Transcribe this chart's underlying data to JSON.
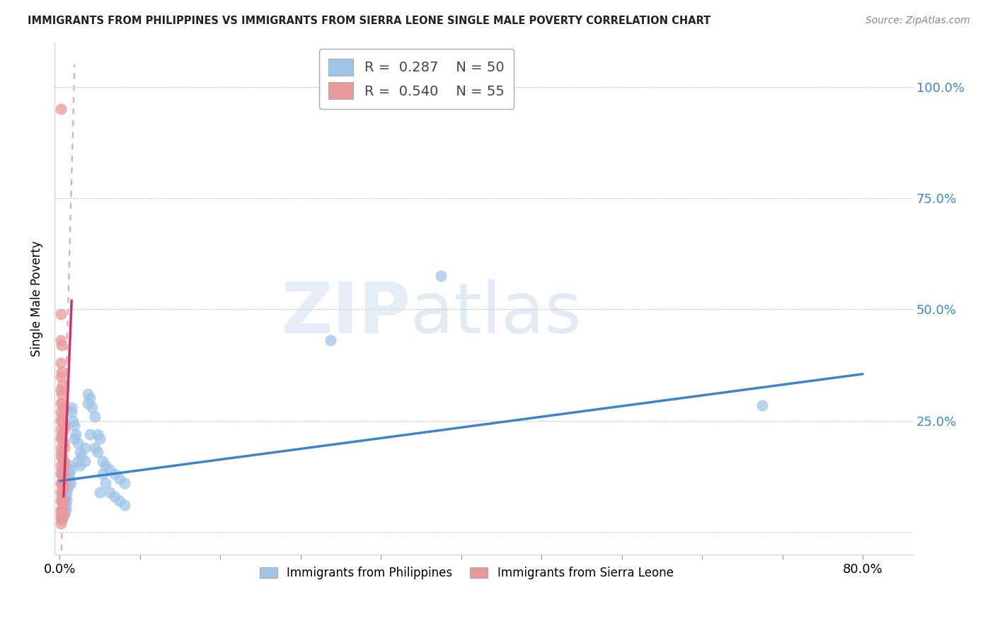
{
  "title": "IMMIGRANTS FROM PHILIPPINES VS IMMIGRANTS FROM SIERRA LEONE SINGLE MALE POVERTY CORRELATION CHART",
  "source": "Source: ZipAtlas.com",
  "ylabel": "Single Male Poverty",
  "yticks": [
    0.0,
    0.25,
    0.5,
    0.75,
    1.0
  ],
  "xlim": [
    -0.005,
    0.85
  ],
  "ylim": [
    -0.05,
    1.1
  ],
  "blue_color": "#9fc5e8",
  "pink_color": "#ea9999",
  "trend_blue": "#3d85c8",
  "trend_pink_solid": "#cc3366",
  "trend_pink_dash": "#e6a0b0",
  "watermark_zip": "ZIP",
  "watermark_atlas": "atlas",
  "philippines_points": [
    [
      0.002,
      0.13
    ],
    [
      0.003,
      0.12
    ],
    [
      0.003,
      0.09
    ],
    [
      0.003,
      0.07
    ],
    [
      0.004,
      0.14
    ],
    [
      0.004,
      0.11
    ],
    [
      0.004,
      0.08
    ],
    [
      0.004,
      0.06
    ],
    [
      0.005,
      0.16
    ],
    [
      0.005,
      0.13
    ],
    [
      0.005,
      0.1
    ],
    [
      0.005,
      0.07
    ],
    [
      0.005,
      0.05
    ],
    [
      0.005,
      0.04
    ],
    [
      0.006,
      0.14
    ],
    [
      0.006,
      0.12
    ],
    [
      0.006,
      0.1
    ],
    [
      0.006,
      0.08
    ],
    [
      0.006,
      0.06
    ],
    [
      0.006,
      0.05
    ],
    [
      0.007,
      0.13
    ],
    [
      0.007,
      0.11
    ],
    [
      0.007,
      0.09
    ],
    [
      0.007,
      0.07
    ],
    [
      0.008,
      0.14
    ],
    [
      0.008,
      0.12
    ],
    [
      0.008,
      0.1
    ],
    [
      0.009,
      0.13
    ],
    [
      0.009,
      0.11
    ],
    [
      0.01,
      0.15
    ],
    [
      0.01,
      0.12
    ],
    [
      0.011,
      0.14
    ],
    [
      0.011,
      0.11
    ],
    [
      0.012,
      0.28
    ],
    [
      0.012,
      0.27
    ],
    [
      0.013,
      0.25
    ],
    [
      0.015,
      0.24
    ],
    [
      0.015,
      0.21
    ],
    [
      0.016,
      0.22
    ],
    [
      0.018,
      0.2
    ],
    [
      0.018,
      0.16
    ],
    [
      0.02,
      0.18
    ],
    [
      0.02,
      0.15
    ],
    [
      0.022,
      0.17
    ],
    [
      0.025,
      0.19
    ],
    [
      0.025,
      0.16
    ],
    [
      0.028,
      0.31
    ],
    [
      0.028,
      0.29
    ],
    [
      0.03,
      0.3
    ],
    [
      0.03,
      0.22
    ],
    [
      0.032,
      0.28
    ],
    [
      0.035,
      0.26
    ],
    [
      0.035,
      0.19
    ],
    [
      0.038,
      0.22
    ],
    [
      0.038,
      0.18
    ],
    [
      0.04,
      0.21
    ],
    [
      0.04,
      0.09
    ],
    [
      0.043,
      0.16
    ],
    [
      0.043,
      0.13
    ],
    [
      0.046,
      0.15
    ],
    [
      0.046,
      0.11
    ],
    [
      0.05,
      0.14
    ],
    [
      0.05,
      0.09
    ],
    [
      0.055,
      0.13
    ],
    [
      0.055,
      0.08
    ],
    [
      0.06,
      0.12
    ],
    [
      0.06,
      0.07
    ],
    [
      0.065,
      0.11
    ],
    [
      0.065,
      0.06
    ],
    [
      0.38,
      0.575
    ],
    [
      0.27,
      0.43
    ],
    [
      0.7,
      0.285
    ]
  ],
  "sierra_leone_points": [
    [
      0.001,
      0.95
    ],
    [
      0.001,
      0.49
    ],
    [
      0.001,
      0.43
    ],
    [
      0.001,
      0.38
    ],
    [
      0.001,
      0.35
    ],
    [
      0.001,
      0.32
    ],
    [
      0.001,
      0.29
    ],
    [
      0.001,
      0.27
    ],
    [
      0.001,
      0.25
    ],
    [
      0.001,
      0.23
    ],
    [
      0.001,
      0.21
    ],
    [
      0.001,
      0.19
    ],
    [
      0.001,
      0.17
    ],
    [
      0.001,
      0.15
    ],
    [
      0.001,
      0.13
    ],
    [
      0.001,
      0.11
    ],
    [
      0.001,
      0.09
    ],
    [
      0.001,
      0.07
    ],
    [
      0.001,
      0.05
    ],
    [
      0.001,
      0.04
    ],
    [
      0.001,
      0.03
    ],
    [
      0.001,
      0.02
    ],
    [
      0.002,
      0.42
    ],
    [
      0.002,
      0.36
    ],
    [
      0.002,
      0.31
    ],
    [
      0.002,
      0.26
    ],
    [
      0.002,
      0.22
    ],
    [
      0.002,
      0.18
    ],
    [
      0.002,
      0.14
    ],
    [
      0.002,
      0.11
    ],
    [
      0.002,
      0.08
    ],
    [
      0.002,
      0.05
    ],
    [
      0.002,
      0.03
    ],
    [
      0.003,
      0.33
    ],
    [
      0.003,
      0.29
    ],
    [
      0.003,
      0.25
    ],
    [
      0.003,
      0.21
    ],
    [
      0.003,
      0.17
    ],
    [
      0.003,
      0.13
    ],
    [
      0.003,
      0.1
    ],
    [
      0.003,
      0.07
    ],
    [
      0.003,
      0.05
    ],
    [
      0.003,
      0.03
    ],
    [
      0.004,
      0.28
    ],
    [
      0.004,
      0.24
    ],
    [
      0.004,
      0.2
    ],
    [
      0.004,
      0.16
    ],
    [
      0.004,
      0.13
    ],
    [
      0.004,
      0.1
    ],
    [
      0.004,
      0.07
    ],
    [
      0.004,
      0.04
    ],
    [
      0.005,
      0.23
    ],
    [
      0.005,
      0.19
    ],
    [
      0.005,
      0.15
    ],
    [
      0.005,
      0.11
    ]
  ],
  "blue_trendline": [
    [
      0.0,
      0.115
    ],
    [
      0.8,
      0.355
    ]
  ],
  "pink_trendline_solid": [
    [
      0.004,
      0.08
    ],
    [
      0.012,
      0.52
    ]
  ],
  "pink_trendline_dash": [
    [
      0.0,
      -0.2
    ],
    [
      0.015,
      1.05
    ]
  ]
}
